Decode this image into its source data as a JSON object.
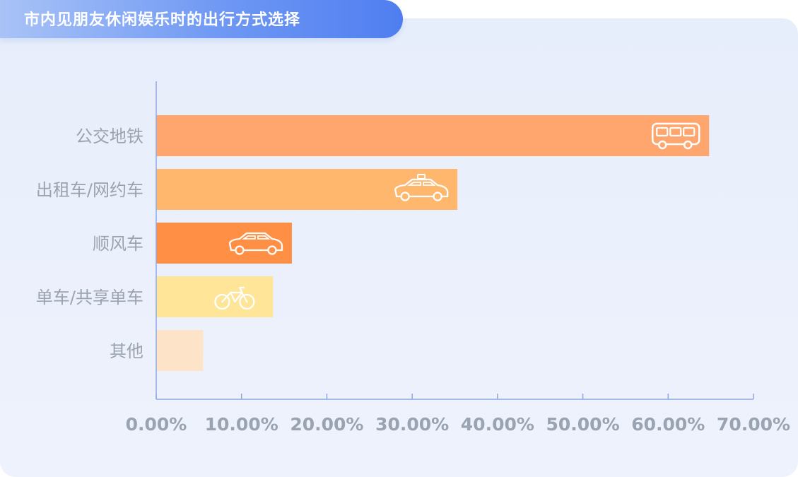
{
  "title": "市内见朋友休闲娱乐时的出行方式选择",
  "chart_data": {
    "type": "bar",
    "orientation": "horizontal",
    "categories": [
      "公交地铁",
      "出租车/网约车",
      "顺风车",
      "单车/共享单车",
      "其他"
    ],
    "values": [
      64.8,
      35.3,
      15.9,
      13.7,
      5.5
    ],
    "bar_colors": [
      "#ffa66e",
      "#ffb76e",
      "#ff8f45",
      "#ffe597",
      "#fde4c9"
    ],
    "icons": [
      "bus-icon",
      "taxi-icon",
      "car-icon",
      "bicycle-icon",
      ""
    ],
    "xlim": [
      0,
      70
    ],
    "xticks": [
      0,
      10,
      20,
      30,
      40,
      50,
      60,
      70
    ],
    "xtick_labels": [
      "0.00%",
      "10.00%",
      "20.00%",
      "30.00%",
      "40.00%",
      "50.00%",
      "60.00%",
      "70.00%"
    ],
    "axis_color": "#8fa9e6",
    "grid": false
  }
}
